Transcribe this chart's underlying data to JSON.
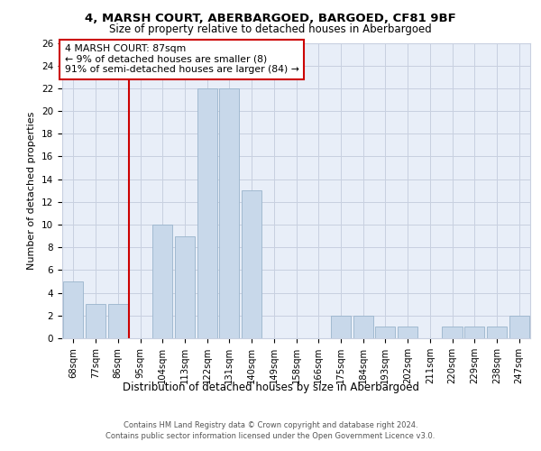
{
  "title1": "4, MARSH COURT, ABERBARGOED, BARGOED, CF81 9BF",
  "title2": "Size of property relative to detached houses in Aberbargoed",
  "xlabel": "Distribution of detached houses by size in Aberbargoed",
  "ylabel": "Number of detached properties",
  "categories": [
    "68sqm",
    "77sqm",
    "86sqm",
    "95sqm",
    "104sqm",
    "113sqm",
    "122sqm",
    "131sqm",
    "140sqm",
    "149sqm",
    "158sqm",
    "166sqm",
    "175sqm",
    "184sqm",
    "193sqm",
    "202sqm",
    "211sqm",
    "220sqm",
    "229sqm",
    "238sqm",
    "247sqm"
  ],
  "values": [
    5,
    3,
    3,
    0,
    10,
    9,
    22,
    22,
    13,
    0,
    0,
    0,
    2,
    2,
    1,
    1,
    0,
    1,
    1,
    1,
    2
  ],
  "bar_color": "#c8d8ea",
  "bar_edge_color": "#9ab4cc",
  "annotation_text": "4 MARSH COURT: 87sqm\n← 9% of detached houses are smaller (8)\n91% of semi-detached houses are larger (84) →",
  "annotation_box_color": "#ffffff",
  "annotation_border_color": "#cc0000",
  "vline_color": "#cc0000",
  "ylim": [
    0,
    26
  ],
  "yticks": [
    0,
    2,
    4,
    6,
    8,
    10,
    12,
    14,
    16,
    18,
    20,
    22,
    24,
    26
  ],
  "footer1": "Contains HM Land Registry data © Crown copyright and database right 2024.",
  "footer2": "Contains public sector information licensed under the Open Government Licence v3.0.",
  "plot_bg_color": "#e8eef8",
  "grid_color": "#c8d0e0",
  "vline_x": 2.5
}
